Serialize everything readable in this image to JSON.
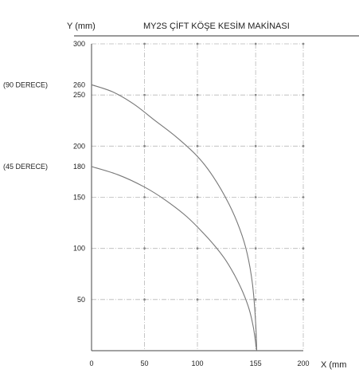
{
  "chart_data": {
    "type": "line",
    "title": "MY2S ÇİFT KÖŞE KESİM MAKİNASI",
    "xlabel": "X (mm",
    "ylabel": "Y (mm)",
    "xlim": [
      0,
      200
    ],
    "ylim": [
      0,
      300
    ],
    "x_ticks": [
      "0",
      "50",
      "100",
      "155",
      "200"
    ],
    "x_tick_values": [
      0,
      50,
      100,
      155,
      200
    ],
    "y_ticks": [
      "50",
      "100",
      "150",
      "200",
      "250",
      "300"
    ],
    "y_tick_values": [
      50,
      100,
      150,
      200,
      250,
      300
    ],
    "grid": true,
    "annotations": [
      {
        "text": "(90 DERECE)",
        "value_label": "260",
        "y": 260
      },
      {
        "text": "(45 DERECE)",
        "value_label": "180",
        "y": 180
      }
    ],
    "series": [
      {
        "x": [
          0,
          20,
          40,
          60,
          80,
          100,
          115,
          130,
          140,
          147,
          152,
          155,
          156
        ],
        "y": [
          260,
          253,
          241,
          225,
          209,
          190,
          170,
          143,
          119,
          95,
          65,
          28,
          0
        ]
      },
      {
        "x": [
          0,
          25,
          50,
          70,
          90,
          110,
          125,
          135,
          143,
          149,
          153,
          156
        ],
        "y": [
          180,
          172,
          160,
          147,
          131,
          110,
          91,
          74,
          57,
          40,
          22,
          0
        ]
      }
    ]
  }
}
